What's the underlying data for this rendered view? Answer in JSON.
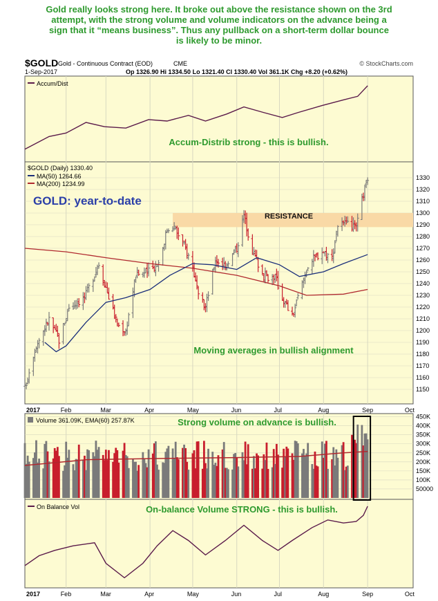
{
  "annotation_top": "Gold really looks strong here. It broke out above the resistance shown on the 3rd\nattempt, with the strong volume and volume indicators on the advance being a\nsign that it “means business”. Thus any pullback on a short-term dollar bounce\nis likely to be minor.",
  "header": {
    "symbol": "$GOLD",
    "description": "Gold - Continuous Contract (EOD)",
    "exchange": "CME",
    "source": "© StockCharts.com",
    "date": "1-Sep-2017",
    "quote": "Op  1326.90  Hi  1334.50  Lo  1321.40  Cl  1330.40  Vol  361.1K  Chg  +8.20 (+0.62%)"
  },
  "colors": {
    "panel_bg": "#fdfbd2",
    "grid": "#d8d8c0",
    "up": "#7a7a7a",
    "down": "#c81e2d",
    "accum_line": "#5a1a4a",
    "ma50": "#1a2e7a",
    "ma200": "#b0282e",
    "resistance_band": "#f9d9a6",
    "annotation_green": "#2e9a2e",
    "title_blue": "#2b3fa8",
    "volume_highlight": "#000000"
  },
  "chart_data": [
    {
      "type": "line",
      "panel": "accum-distrib",
      "legend": "Accum/Dist",
      "annotation": "Accum-Distrib strong - this is bullish.",
      "x": [
        "2017-01-03",
        "2017-01-20",
        "2017-02-01",
        "2017-02-15",
        "2017-02-28",
        "2017-03-15",
        "2017-03-31",
        "2017-04-13",
        "2017-04-28",
        "2017-05-10",
        "2017-05-25",
        "2017-06-06",
        "2017-06-20",
        "2017-07-03",
        "2017-07-14",
        "2017-07-31",
        "2017-08-15",
        "2017-08-25",
        "2017-09-01"
      ],
      "y": [
        0.1,
        0.28,
        0.33,
        0.48,
        0.42,
        0.4,
        0.52,
        0.5,
        0.58,
        0.5,
        0.6,
        0.7,
        0.62,
        0.55,
        0.62,
        0.72,
        0.8,
        0.85,
        1.0
      ],
      "grid": true
    },
    {
      "type": "ohlc",
      "panel": "price",
      "title": "GOLD: year-to-date",
      "legend": [
        "$GOLD (Daily) 1330.40",
        "MA(50) 1264.66",
        "MA(200) 1234.99"
      ],
      "ylim": [
        1140,
        1340
      ],
      "y_ticks": [
        1150,
        1160,
        1170,
        1180,
        1190,
        1200,
        1210,
        1220,
        1230,
        1240,
        1250,
        1260,
        1270,
        1280,
        1290,
        1300,
        1310,
        1320,
        1330
      ],
      "x_tick_labels": [
        "2017",
        "Feb",
        "Mar",
        "Apr",
        "May",
        "Jun",
        "Jul",
        "Aug",
        "Sep",
        "Oct"
      ],
      "resistance": {
        "label": "RESISTANCE",
        "from": 1288,
        "to": 1300,
        "start": "2017-04-17"
      },
      "annotation": "Moving averages in bullish alignment",
      "close_path": [
        [
          "2017-01-03",
          1151
        ],
        [
          "2017-01-10",
          1185
        ],
        [
          "2017-01-20",
          1210
        ],
        [
          "2017-01-27",
          1192
        ],
        [
          "2017-02-03",
          1220
        ],
        [
          "2017-02-14",
          1228
        ],
        [
          "2017-02-24",
          1257
        ],
        [
          "2017-03-02",
          1233
        ],
        [
          "2017-03-09",
          1205
        ],
        [
          "2017-03-15",
          1200
        ],
        [
          "2017-03-22",
          1248
        ],
        [
          "2017-03-31",
          1250
        ],
        [
          "2017-04-07",
          1258
        ],
        [
          "2017-04-13",
          1286
        ],
        [
          "2017-04-17",
          1290
        ],
        [
          "2017-04-24",
          1275
        ],
        [
          "2017-05-01",
          1255
        ],
        [
          "2017-05-05",
          1228
        ],
        [
          "2017-05-10",
          1220
        ],
        [
          "2017-05-17",
          1260
        ],
        [
          "2017-05-24",
          1256
        ],
        [
          "2017-06-01",
          1270
        ],
        [
          "2017-06-06",
          1298
        ],
        [
          "2017-06-12",
          1268
        ],
        [
          "2017-06-20",
          1246
        ],
        [
          "2017-06-28",
          1246
        ],
        [
          "2017-07-03",
          1228
        ],
        [
          "2017-07-10",
          1212
        ],
        [
          "2017-07-14",
          1228
        ],
        [
          "2017-07-21",
          1256
        ],
        [
          "2017-07-31",
          1268
        ],
        [
          "2017-08-07",
          1262
        ],
        [
          "2017-08-11",
          1290
        ],
        [
          "2017-08-18",
          1290
        ],
        [
          "2017-08-24",
          1287
        ],
        [
          "2017-08-29",
          1316
        ],
        [
          "2017-09-01",
          1330
        ]
      ],
      "ma50_path": [
        [
          "2017-01-17",
          1190
        ],
        [
          "2017-01-25",
          1182
        ],
        [
          "2017-02-01",
          1187
        ],
        [
          "2017-02-15",
          1207
        ],
        [
          "2017-03-01",
          1224
        ],
        [
          "2017-03-15",
          1228
        ],
        [
          "2017-04-01",
          1235
        ],
        [
          "2017-04-15",
          1247
        ],
        [
          "2017-05-01",
          1257
        ],
        [
          "2017-05-15",
          1256
        ],
        [
          "2017-06-01",
          1252
        ],
        [
          "2017-06-15",
          1262
        ],
        [
          "2017-07-01",
          1256
        ],
        [
          "2017-07-15",
          1246
        ],
        [
          "2017-08-01",
          1250
        ],
        [
          "2017-08-15",
          1257
        ],
        [
          "2017-09-01",
          1264.66
        ]
      ],
      "ma200_path": [
        [
          "2017-01-03",
          1270
        ],
        [
          "2017-02-01",
          1267
        ],
        [
          "2017-03-01",
          1262
        ],
        [
          "2017-04-01",
          1257
        ],
        [
          "2017-05-01",
          1253
        ],
        [
          "2017-06-01",
          1247
        ],
        [
          "2017-07-01",
          1238
        ],
        [
          "2017-07-20",
          1230
        ],
        [
          "2017-08-15",
          1231
        ],
        [
          "2017-09-01",
          1234.99
        ]
      ],
      "grid": true
    },
    {
      "type": "bar",
      "panel": "volume",
      "legend": "Volume 361.09K, EMA(60) 257.87K",
      "annotation": "Strong volume on advance is bullish.",
      "ylim": [
        0,
        460000
      ],
      "y_ticks": [
        50000,
        100000,
        150000,
        200000,
        250000,
        300000,
        350000,
        400000,
        450000
      ],
      "y_tick_labels": [
        "50000",
        "100K",
        "150K",
        "200K",
        "250K",
        "300K",
        "350K",
        "400K",
        "450K"
      ],
      "ema60": [
        [
          "2017-01-03",
          180000
        ],
        [
          "2017-02-15",
          212000
        ],
        [
          "2017-04-01",
          218000
        ],
        [
          "2017-06-01",
          224000
        ],
        [
          "2017-07-15",
          230000
        ],
        [
          "2017-08-15",
          250000
        ],
        [
          "2017-09-01",
          257870
        ]
      ],
      "highlight": {
        "from": "2017-08-24",
        "to": "2017-09-01"
      },
      "grid": true
    },
    {
      "type": "line",
      "panel": "on-balance-volume",
      "legend": "On Balance Vol",
      "annotation": "On-balance Volume STRONG - this is bullish.",
      "x_tick_labels": [
        "2017",
        "Feb",
        "Mar",
        "Apr",
        "May",
        "Jun",
        "Jul",
        "Aug",
        "Sep",
        "Oct"
      ],
      "x": [
        "2017-01-03",
        "2017-01-13",
        "2017-01-24",
        "2017-02-06",
        "2017-02-21",
        "2017-03-01",
        "2017-03-14",
        "2017-03-27",
        "2017-04-06",
        "2017-04-17",
        "2017-04-28",
        "2017-05-10",
        "2017-05-24",
        "2017-06-06",
        "2017-06-19",
        "2017-06-30",
        "2017-07-10",
        "2017-07-24",
        "2017-08-04",
        "2017-08-15",
        "2017-08-24",
        "2017-08-29",
        "2017-09-01"
      ],
      "y": [
        0.22,
        0.35,
        0.42,
        0.48,
        0.52,
        0.25,
        0.06,
        0.25,
        0.48,
        0.68,
        0.55,
        0.36,
        0.55,
        0.75,
        0.55,
        0.42,
        0.55,
        0.72,
        0.82,
        0.78,
        0.8,
        0.88,
        1.0
      ],
      "grid": true
    }
  ]
}
